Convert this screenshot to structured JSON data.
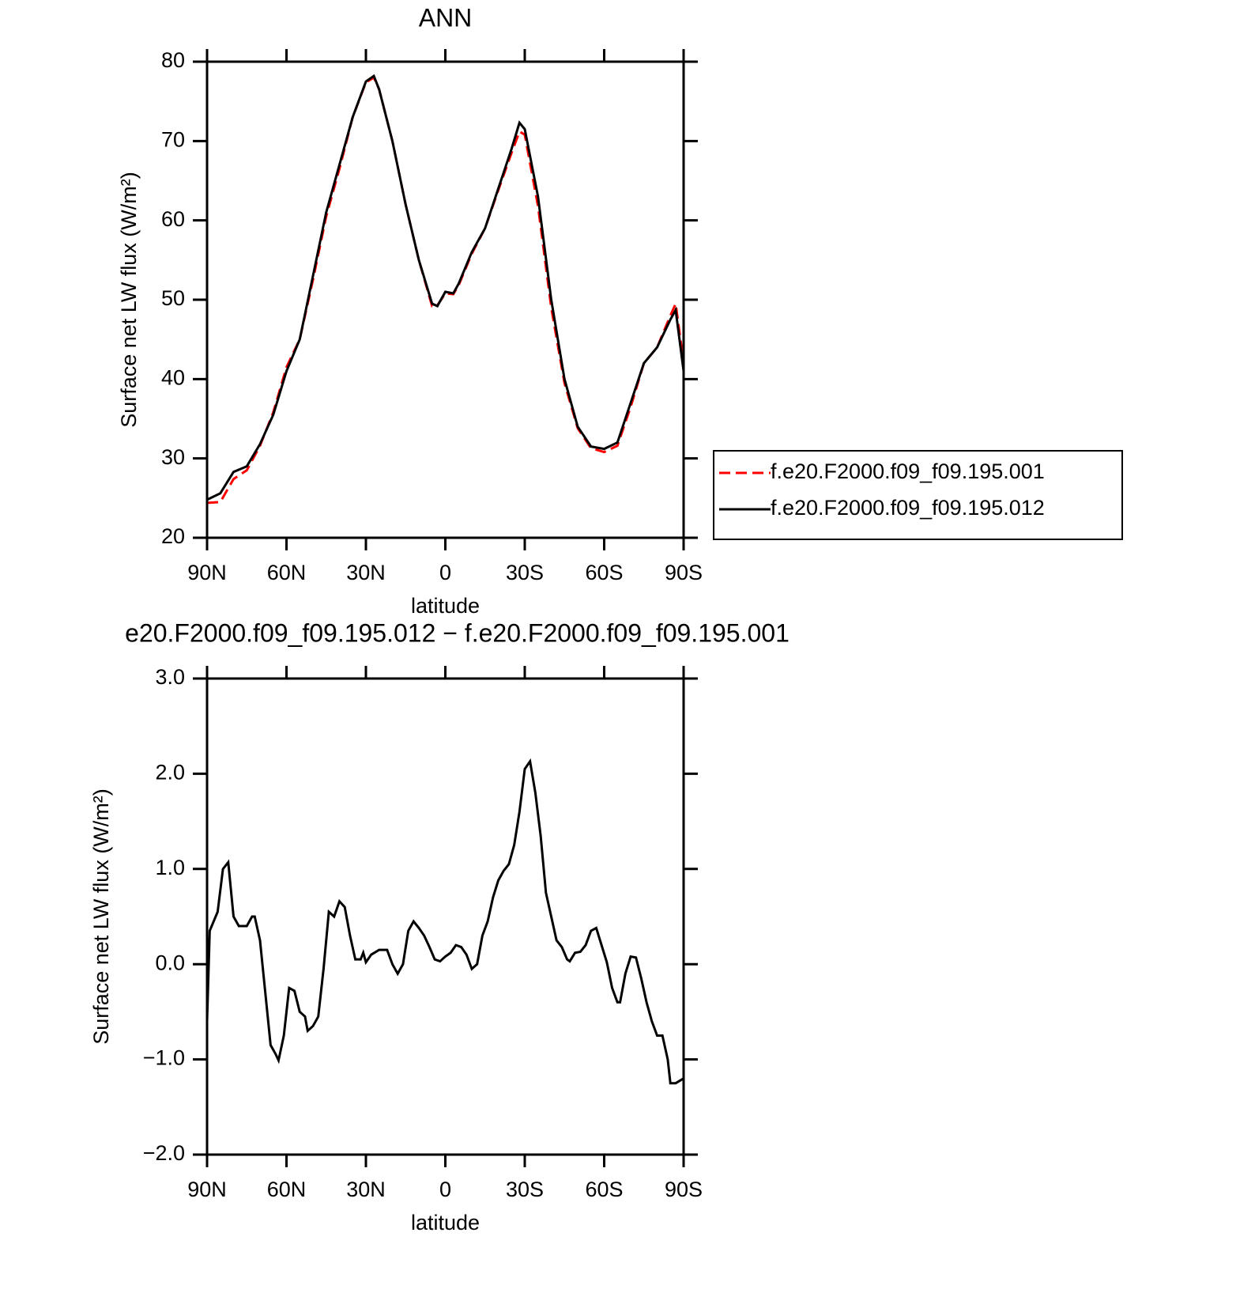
{
  "chart_data": [
    {
      "type": "line",
      "title": "ANN",
      "xlabel": "latitude",
      "ylabel": "Surface net LW flux (W/m²)",
      "x": [
        90,
        85,
        80,
        75,
        70,
        65,
        60,
        55,
        50,
        45,
        40,
        35,
        30,
        27,
        25,
        20,
        15,
        10,
        5,
        3,
        0,
        -3,
        -5,
        -10,
        -15,
        -20,
        -25,
        -28,
        -30,
        -35,
        -40,
        -45,
        -50,
        -55,
        -60,
        -65,
        -70,
        -75,
        -80,
        -85,
        -87,
        -90
      ],
      "series": [
        {
          "name": "f.e20.F2000.f09_f09.195.001",
          "color": "#ff0000",
          "dashed": true,
          "values": [
            24.4,
            24.5,
            27.4,
            28.5,
            31.6,
            35.8,
            41.5,
            45,
            52.5,
            60.5,
            66.5,
            73,
            77.4,
            78,
            76.5,
            70,
            62,
            55,
            49.2,
            49.3,
            50.8,
            50.7,
            51.8,
            55.8,
            59,
            63.8,
            68.5,
            71.2,
            70.8,
            61.8,
            49,
            39.5,
            33.8,
            31.3,
            30.8,
            31.6,
            36.5,
            42,
            44,
            48,
            49.5,
            42
          ]
        },
        {
          "name": "f.e20.F2000.f09_f09.195.012",
          "color": "#000000",
          "dashed": false,
          "values": [
            24.8,
            25.6,
            28.3,
            29.0,
            31.8,
            35.5,
            41,
            45,
            53,
            61,
            67,
            73,
            77.5,
            78.2,
            76.5,
            70,
            62,
            55,
            49.5,
            49.2,
            51,
            50.8,
            52,
            56,
            59,
            64,
            69,
            72.3,
            71.5,
            63,
            50,
            40,
            34,
            31.5,
            31.2,
            32,
            37,
            42,
            44,
            47.5,
            48.7,
            41
          ]
        }
      ],
      "xlim": [
        90,
        -90
      ],
      "xticks": [
        {
          "value": 90,
          "label": "90N"
        },
        {
          "value": 60,
          "label": "60N"
        },
        {
          "value": 30,
          "label": "30N"
        },
        0,
        {
          "value": -30,
          "label": "30S"
        },
        {
          "value": -60,
          "label": "60S"
        },
        {
          "value": -90,
          "label": "90S"
        }
      ],
      "ylim": [
        20,
        80
      ],
      "yticks": [
        20,
        30,
        40,
        50,
        60,
        70,
        80
      ],
      "legend": "right"
    },
    {
      "type": "line",
      "title": "e20.F2000.f09_f09.195.012 − f.e20.F2000.f09_f09.195.001",
      "xlabel": "latitude",
      "ylabel": "Surface net LW flux (W/m²)",
      "x": [
        90,
        89,
        86,
        84,
        82,
        80,
        78,
        75,
        73,
        72,
        70,
        68,
        66,
        64,
        63,
        61,
        59,
        57,
        55,
        53,
        52,
        50,
        48,
        46,
        44,
        42,
        40,
        38,
        36,
        34,
        32,
        31,
        30,
        28,
        25,
        22,
        20,
        18,
        16,
        14,
        12,
        10,
        8,
        6,
        4,
        2,
        0,
        -2,
        -4,
        -6,
        -8,
        -10,
        -12,
        -14,
        -16,
        -18,
        -20,
        -22,
        -24,
        -26,
        -28,
        -30,
        -32,
        -34,
        -36,
        -38,
        -40,
        -42,
        -44,
        -46,
        -47,
        -49,
        -51,
        -53,
        -55,
        -57,
        -59,
        -61,
        -63,
        -65,
        -66,
        -68,
        -70,
        -72,
        -74,
        -76,
        -78,
        -80,
        -82,
        -84,
        -85,
        -87,
        -90
      ],
      "series": [
        {
          "color": "#000000",
          "dashed": false,
          "values": [
            -0.6,
            0.35,
            0.55,
            1.0,
            1.07,
            0.5,
            0.4,
            0.4,
            0.5,
            0.5,
            0.25,
            -0.3,
            -0.85,
            -0.95,
            -1.01,
            -0.75,
            -0.25,
            -0.28,
            -0.5,
            -0.55,
            -0.7,
            -0.65,
            -0.55,
            -0.05,
            0.55,
            0.5,
            0.66,
            0.6,
            0.3,
            0.05,
            0.05,
            0.12,
            0.02,
            0.1,
            0.15,
            0.15,
            0,
            -0.1,
            0,
            0.35,
            0.45,
            0.38,
            0.3,
            0.18,
            0.05,
            0.03,
            0.08,
            0.12,
            0.2,
            0.18,
            0.1,
            -0.05,
            0,
            0.3,
            0.45,
            0.7,
            0.88,
            0.98,
            1.05,
            1.25,
            1.6,
            2.05,
            2.13,
            1.8,
            1.35,
            0.75,
            0.5,
            0.25,
            0.18,
            0.05,
            0.03,
            0.12,
            0.13,
            0.2,
            0.35,
            0.38,
            0.2,
            0.02,
            -0.25,
            -0.4,
            -0.4,
            -0.1,
            0.08,
            0.07,
            -0.15,
            -0.4,
            -0.6,
            -0.75,
            -0.75,
            -1.0,
            -1.25,
            -1.25,
            -1.2
          ]
        }
      ],
      "xlim": [
        90,
        -90
      ],
      "xticks": [
        {
          "value": 90,
          "label": "90N"
        },
        {
          "value": 60,
          "label": "60N"
        },
        {
          "value": 30,
          "label": "30N"
        },
        0,
        {
          "value": -30,
          "label": "30S"
        },
        {
          "value": -60,
          "label": "60S"
        },
        {
          "value": -90,
          "label": "90S"
        }
      ],
      "ylim": [
        -2,
        3
      ],
      "yticks": [
        {
          "value": -2,
          "label": "−2.0"
        },
        {
          "value": -1,
          "label": "−1.0"
        },
        {
          "value": 0,
          "label": "0.0"
        },
        {
          "value": 1,
          "label": "1.0"
        },
        {
          "value": 2,
          "label": "2.0"
        },
        {
          "value": 3,
          "label": "3.0"
        }
      ]
    }
  ]
}
